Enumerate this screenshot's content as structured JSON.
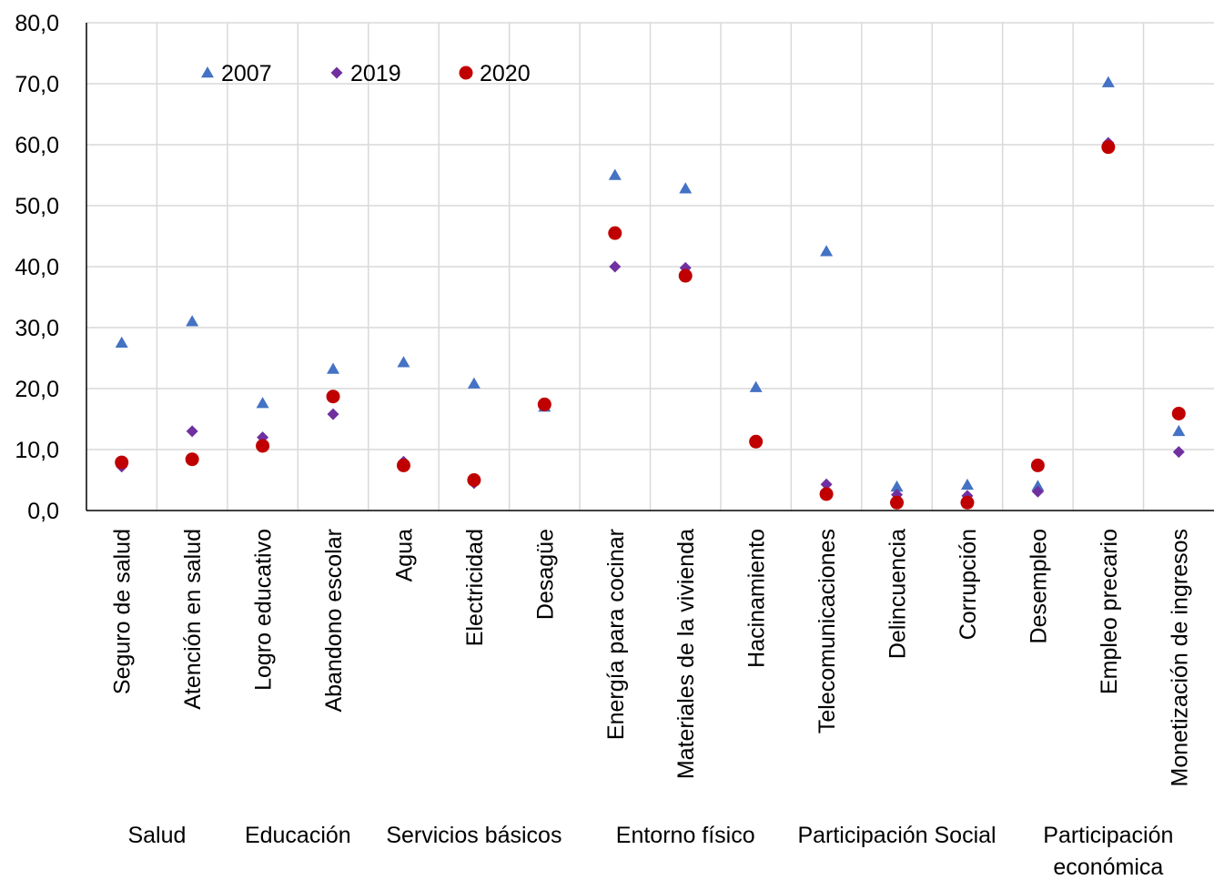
{
  "chart_data": {
    "type": "scatter",
    "ylim": [
      0,
      80
    ],
    "yticks": [
      "0,0",
      "10,0",
      "20,0",
      "30,0",
      "40,0",
      "50,0",
      "60,0",
      "70,0",
      "80,0"
    ],
    "grid": true,
    "legend_position": "top-left",
    "categories": [
      "Seguro de salud",
      "Atención en salud",
      "Logro educativo",
      "Abandono escolar",
      "Agua",
      "Electricidad",
      "Desagüe",
      "Energía para cocinar",
      "Materiales de la vivienda",
      "Hacinamiento",
      "Telecomunicaciones",
      "Delincuencia",
      "Corrupción",
      "Desempleo",
      "Empleo precario",
      "Monetización de ingresos"
    ],
    "groups": [
      {
        "label": "Salud",
        "lines": [
          "Salud"
        ],
        "start": 0,
        "end": 1
      },
      {
        "label": "Educación",
        "lines": [
          "Educación"
        ],
        "start": 2,
        "end": 3
      },
      {
        "label": "Servicios básicos",
        "lines": [
          "Servicios básicos"
        ],
        "start": 4,
        "end": 6
      },
      {
        "label": "Entorno físico",
        "lines": [
          "Entorno físico"
        ],
        "start": 7,
        "end": 9
      },
      {
        "label": "Participación Social",
        "lines": [
          "Participación Social"
        ],
        "start": 10,
        "end": 12
      },
      {
        "label": "Participación económica",
        "lines": [
          "Participación",
          "económica"
        ],
        "start": 13,
        "end": 15
      }
    ],
    "series": [
      {
        "name": "2007",
        "marker": "triangle",
        "color": "#4472C4",
        "values": [
          27.5,
          31.0,
          17.6,
          23.2,
          24.3,
          20.8,
          17.0,
          55.0,
          52.8,
          20.2,
          42.5,
          3.9,
          4.2,
          4.0,
          70.2,
          13.0
        ]
      },
      {
        "name": "2019",
        "marker": "diamond",
        "color": "#7030A0",
        "values": [
          7.2,
          13.0,
          12.0,
          15.8,
          8.0,
          4.5,
          17.2,
          40.0,
          39.8,
          11.3,
          4.3,
          2.6,
          2.4,
          3.1,
          60.3,
          9.6
        ]
      },
      {
        "name": "2020",
        "marker": "circle",
        "color": "#C00000",
        "values": [
          7.9,
          8.4,
          10.6,
          18.7,
          7.4,
          5.0,
          17.4,
          45.5,
          38.5,
          11.3,
          2.7,
          1.3,
          1.3,
          7.4,
          59.6,
          15.9
        ]
      }
    ]
  }
}
